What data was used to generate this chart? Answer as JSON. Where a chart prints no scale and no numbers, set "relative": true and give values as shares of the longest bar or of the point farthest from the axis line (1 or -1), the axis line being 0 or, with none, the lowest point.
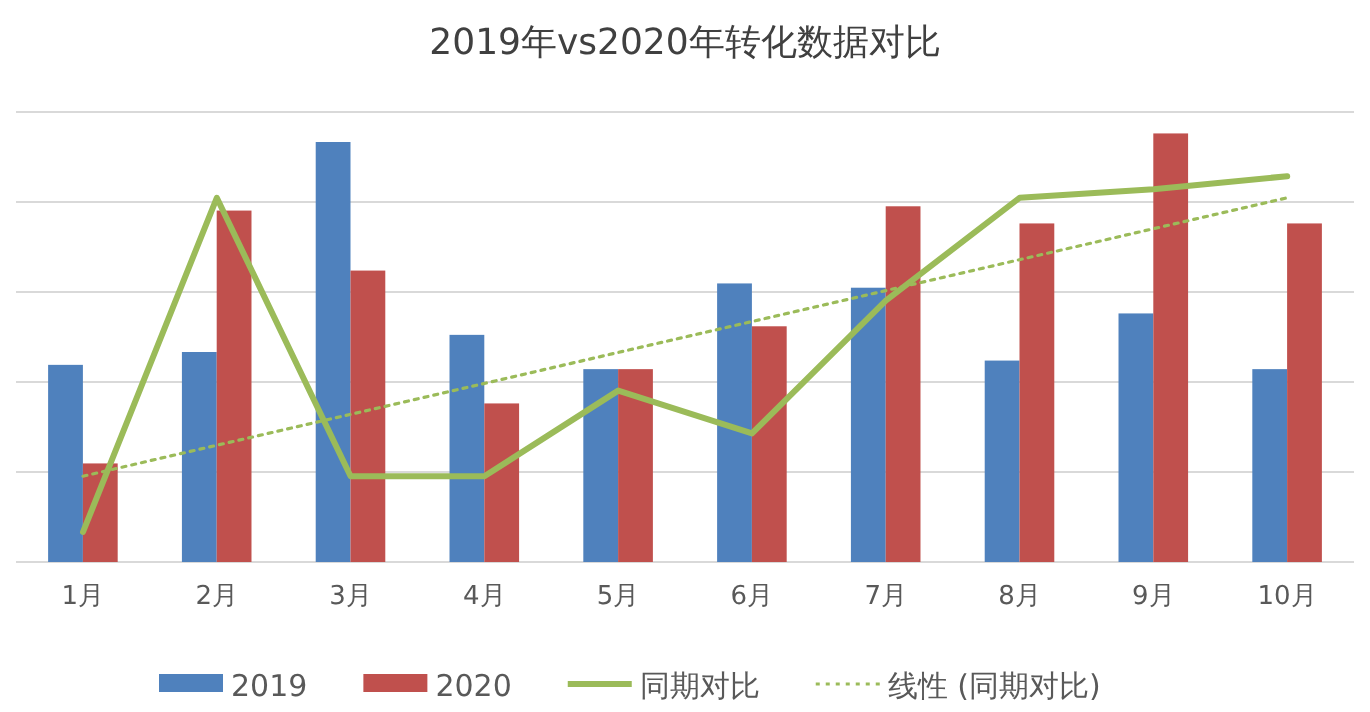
{
  "chart_data": {
    "type": "bar",
    "title": "2019年vs2020年转化数据对比",
    "relative": true,
    "grid": "y",
    "legend": "bottom",
    "categories": [
      "1月",
      "2月",
      "3月",
      "4月",
      "5月",
      "6月",
      "7月",
      "8月",
      "9月",
      "10月"
    ],
    "series": [
      {
        "name": "2019",
        "color": "#4f81bd",
        "values": [
          0.46,
          0.49,
          0.98,
          0.53,
          0.45,
          0.65,
          0.64,
          0.47,
          0.58,
          0.45
        ]
      },
      {
        "name": "2020",
        "color": "#c0504d",
        "values": [
          0.23,
          0.82,
          0.68,
          0.37,
          0.45,
          0.55,
          0.83,
          0.79,
          1,
          0.79
        ]
      },
      {
        "name": "同期对比",
        "type": "line",
        "color": "#9bbb59",
        "line_style": "solid",
        "values": [
          0.07,
          0.85,
          0.2,
          0.2,
          0.4,
          0.3,
          0.61,
          0.85,
          0.87,
          0.9
        ]
      },
      {
        "name": "线性 (同期对比)",
        "type": "line",
        "color": "#9bbb59",
        "line_style": "dotted",
        "x": [
          "1月",
          "10月"
        ],
        "values": [
          0.2,
          0.85
        ]
      }
    ]
  }
}
